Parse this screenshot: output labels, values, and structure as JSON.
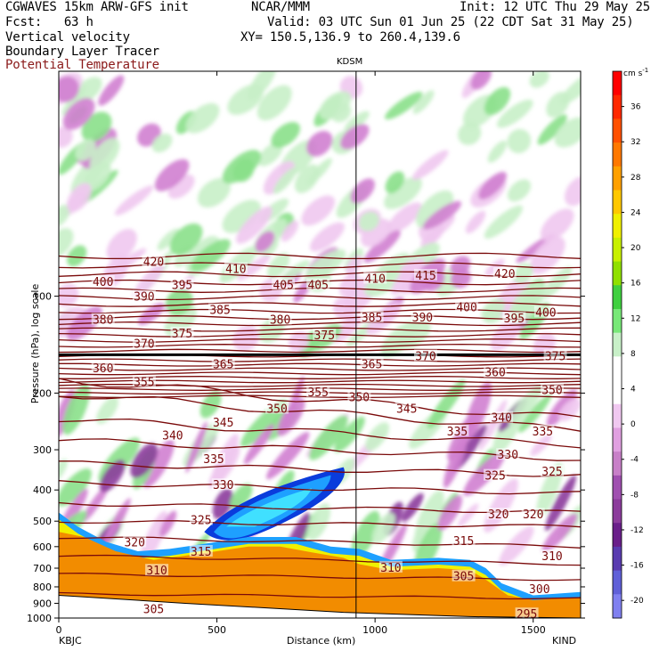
{
  "header": {
    "model": "CGWAVES 15km ARW-GFS init",
    "forecast": "Fcst:   63 h",
    "center": "NCAR/MMM",
    "init": "Init: 12 UTC Thu 29 May 25",
    "valid": "Valid: 03 UTC Sun 01 Jun 25 (22 CDT Sat 31 May 25)",
    "xy": "XY= 150.5,136.9 to 260.4,139.6",
    "field1": "Vertical velocity",
    "field2": "Boundary Layer Tracer",
    "field3": "Potential Temperature"
  },
  "colors": {
    "field3": "#8b1a1a",
    "theta_line": "#7a0a0a",
    "terrain": "#f28c00",
    "jet_dark": "#0a3cdc",
    "jet_mid": "#1ea0ff",
    "jet_light": "#40e0ff",
    "tracer_yellow": "#f0f000",
    "up_light": "#c8f0c8",
    "up_mid": "#8ae08a",
    "down_light": "#f0c8f0",
    "down_mid": "#d080d0",
    "down_dark": "#8c3c9c"
  },
  "chart_data": {
    "type": "cross-section",
    "title": "KDSM",
    "xlabel": "Distance (km)",
    "ylabel": "Pressure (hPa), log scale",
    "xlim": [
      0,
      1650
    ],
    "ylim": [
      1000,
      20
    ],
    "x_ticks": [
      "0",
      "500",
      "1000",
      "1500"
    ],
    "x_tick_values": [
      0,
      500,
      1000,
      1500
    ],
    "y_ticks": [
      "100",
      "200",
      "300",
      "400",
      "500",
      "600",
      "700",
      "800",
      "900",
      "1000"
    ],
    "y_tick_values": [
      100,
      200,
      300,
      400,
      500,
      600,
      700,
      800,
      900,
      1000
    ],
    "left_station": "KBJC",
    "right_station": "KIND",
    "marker_station_x_km": 940,
    "colorbar": {
      "unit": "cm s",
      "unit_exp": "-1",
      "labels": [
        "36",
        "32",
        "28",
        "24",
        "20",
        "16",
        "12",
        "8",
        "4",
        "0",
        "-4",
        "-8",
        "-12",
        "-16",
        "-20"
      ],
      "values": [
        36,
        32,
        28,
        24,
        20,
        16,
        12,
        8,
        4,
        0,
        -4,
        -8,
        -12,
        -16,
        -20
      ],
      "colors": [
        "#ff0000",
        "#ff2800",
        "#ff5000",
        "#ff7800",
        "#ffa000",
        "#ffc800",
        "#f0f000",
        "#c8f000",
        "#90e000",
        "#40d040",
        "#78e878",
        "#c8f0c8",
        "#ffffff",
        "#ffffff",
        "#f0c8f0",
        "#e0a0e0",
        "#c880c8",
        "#a050b0",
        "#8c3c9c",
        "#6a1f8a",
        "#5a3cb0",
        "#6060d8",
        "#8080f0"
      ]
    },
    "theta_labels": [
      {
        "text": "420",
        "x": 300,
        "p": 78
      },
      {
        "text": "420",
        "x": 1410,
        "p": 85
      },
      {
        "text": "410",
        "x": 560,
        "p": 82
      },
      {
        "text": "410",
        "x": 1000,
        "p": 88
      },
      {
        "text": "415",
        "x": 1160,
        "p": 86
      },
      {
        "text": "405",
        "x": 710,
        "p": 92
      },
      {
        "text": "405",
        "x": 820,
        "p": 92
      },
      {
        "text": "400",
        "x": 140,
        "p": 90
      },
      {
        "text": "400",
        "x": 1290,
        "p": 108
      },
      {
        "text": "400",
        "x": 1540,
        "p": 112
      },
      {
        "text": "395",
        "x": 390,
        "p": 92
      },
      {
        "text": "395",
        "x": 1440,
        "p": 117
      },
      {
        "text": "390",
        "x": 270,
        "p": 100
      },
      {
        "text": "390",
        "x": 1150,
        "p": 116
      },
      {
        "text": "385",
        "x": 510,
        "p": 110
      },
      {
        "text": "385",
        "x": 990,
        "p": 116
      },
      {
        "text": "380",
        "x": 140,
        "p": 118
      },
      {
        "text": "380",
        "x": 700,
        "p": 118
      },
      {
        "text": "375",
        "x": 390,
        "p": 130
      },
      {
        "text": "375",
        "x": 840,
        "p": 132
      },
      {
        "text": "375",
        "x": 1570,
        "p": 153
      },
      {
        "text": "370",
        "x": 270,
        "p": 140
      },
      {
        "text": "370",
        "x": 1160,
        "p": 153
      },
      {
        "text": "365",
        "x": 520,
        "p": 162
      },
      {
        "text": "365",
        "x": 990,
        "p": 162
      },
      {
        "text": "360",
        "x": 140,
        "p": 167
      },
      {
        "text": "360",
        "x": 1380,
        "p": 172
      },
      {
        "text": "355",
        "x": 270,
        "p": 184
      },
      {
        "text": "355",
        "x": 820,
        "p": 198
      },
      {
        "text": "350",
        "x": 690,
        "p": 223
      },
      {
        "text": "350",
        "x": 950,
        "p": 205
      },
      {
        "text": "350",
        "x": 1560,
        "p": 195
      },
      {
        "text": "345",
        "x": 520,
        "p": 246
      },
      {
        "text": "345",
        "x": 1100,
        "p": 223
      },
      {
        "text": "340",
        "x": 360,
        "p": 270
      },
      {
        "text": "340",
        "x": 1400,
        "p": 238
      },
      {
        "text": "335",
        "x": 490,
        "p": 320
      },
      {
        "text": "335",
        "x": 1260,
        "p": 262
      },
      {
        "text": "335",
        "x": 1530,
        "p": 262
      },
      {
        "text": "330",
        "x": 520,
        "p": 385
      },
      {
        "text": "330",
        "x": 1420,
        "p": 310
      },
      {
        "text": "325",
        "x": 450,
        "p": 495
      },
      {
        "text": "325",
        "x": 1380,
        "p": 360
      },
      {
        "text": "325",
        "x": 1560,
        "p": 350
      },
      {
        "text": "320",
        "x": 240,
        "p": 580
      },
      {
        "text": "320",
        "x": 1390,
        "p": 475
      },
      {
        "text": "320",
        "x": 1500,
        "p": 475
      },
      {
        "text": "315",
        "x": 450,
        "p": 620
      },
      {
        "text": "315",
        "x": 1280,
        "p": 575
      },
      {
        "text": "310",
        "x": 310,
        "p": 710
      },
      {
        "text": "310",
        "x": 1050,
        "p": 695
      },
      {
        "text": "310",
        "x": 1560,
        "p": 640
      },
      {
        "text": "305",
        "x": 1280,
        "p": 740
      },
      {
        "text": "305",
        "x": 300,
        "p": 935
      },
      {
        "text": "300",
        "x": 1520,
        "p": 810
      },
      {
        "text": "295",
        "x": 1480,
        "p": 970
      }
    ]
  }
}
